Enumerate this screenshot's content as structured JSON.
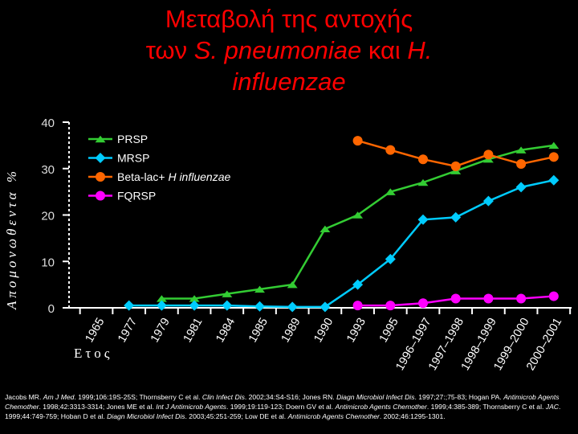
{
  "title": {
    "line1": "Μεταβολή  της αντοχής",
    "line2_pre": "των ",
    "line2_species1": "S. pneumoniae",
    "line2_mid": "  και ",
    "line2_species2": "H.",
    "line3": "influenzae"
  },
  "reference": {
    "segments": [
      {
        "text": "Jacobs MR. ",
        "italic": false
      },
      {
        "text": "Am J Med",
        "italic": true
      },
      {
        "text": ". 1999;106:19S-25S; Thornsberry C et al. ",
        "italic": false
      },
      {
        "text": "Clin Infect Dis",
        "italic": true
      },
      {
        "text": ". 2002;34:S4-S16; Jones RN. ",
        "italic": false
      },
      {
        "text": "Diagn Microbiol Infect Dis",
        "italic": true
      },
      {
        "text": ". 1997;27:;75-83; Hogan PA. ",
        "italic": false
      },
      {
        "text": "Antimicrob Agents Chemother",
        "italic": true
      },
      {
        "text": ". 1998;42:3313-3314; Jones ME et al. ",
        "italic": false
      },
      {
        "text": "Int J Antimicrob Agents",
        "italic": true
      },
      {
        "text": ". 1999;19:119-123; Doern GV et al. ",
        "italic": false
      },
      {
        "text": "Antimicrob Agents Chemother",
        "italic": true
      },
      {
        "text": ". 1999;4:385-389; Thornsberry C et al. ",
        "italic": false
      },
      {
        "text": "JAC",
        "italic": true
      },
      {
        "text": ". 1999;44:749-759; Hoban D et al. ",
        "italic": false
      },
      {
        "text": "Diagn Microbiol Infect Dis",
        "italic": true
      },
      {
        "text": ". 2003;45:251-259; Low DE et al. ",
        "italic": false
      },
      {
        "text": "Antimicrob Agents Chemother",
        "italic": true
      },
      {
        "text": ". 2002;46:1295-1301.",
        "italic": false
      }
    ]
  },
  "chart_data": {
    "type": "line",
    "title": "Μεταβολή  της αντοχής των S. pneumoniae  και H. influenzae",
    "ylabel": "Απομονωθεντα %",
    "xlabel": "Ετος",
    "ylim": [
      0,
      40
    ],
    "yticks": [
      0,
      10,
      20,
      30,
      40
    ],
    "grid": false,
    "legend_position": "top-left",
    "categories": [
      "1965",
      "1977",
      "1979",
      "1981",
      "1984",
      "1985",
      "1989",
      "1990",
      "1993",
      "1995",
      "1996–1997",
      "1997–1998",
      "1998–1999",
      "1999–2000",
      "2000–2001"
    ],
    "series": [
      {
        "name": "PRSP",
        "color": "#33cc33",
        "marker": "triangle",
        "values": [
          null,
          null,
          2,
          2,
          3,
          4,
          5,
          17,
          20,
          25,
          27,
          29.5,
          32,
          34,
          35
        ]
      },
      {
        "name": "MRSP",
        "color": "#00ccff",
        "marker": "diamond",
        "values": [
          null,
          0.5,
          0.5,
          0.5,
          0.5,
          0.3,
          0.2,
          0.2,
          5,
          10.5,
          19,
          19.5,
          23,
          26,
          27.5
        ]
      },
      {
        "name": "Beta-lac+ H influenzae",
        "name_plain": "Beta-lac+ ",
        "name_italic": "H influenzae",
        "color": "#ff6600",
        "marker": "circle",
        "values": [
          null,
          null,
          null,
          null,
          null,
          null,
          null,
          null,
          36,
          34,
          32,
          30.5,
          33,
          31,
          32.5
        ]
      },
      {
        "name": "FQRSP",
        "color": "#ff00ff",
        "marker": "circle",
        "values": [
          null,
          null,
          null,
          null,
          null,
          null,
          null,
          null,
          0.5,
          0.5,
          1,
          2,
          2,
          2,
          2.5
        ]
      }
    ],
    "colors": {
      "axis": "#ffffff",
      "text": "#ffffff",
      "title": "#ff0000"
    }
  }
}
